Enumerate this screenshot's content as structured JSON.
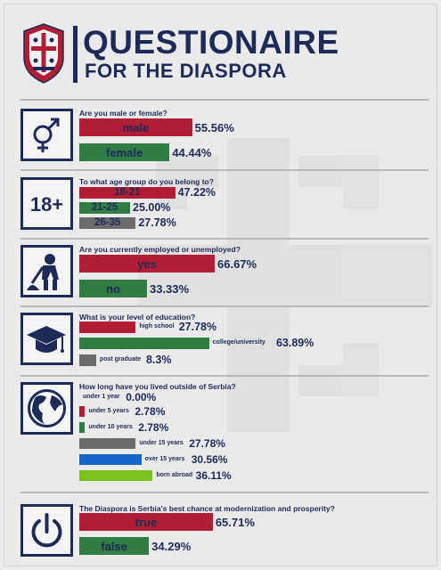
{
  "header": {
    "title_line1": "QUESTIONAIRE",
    "title_line2": "FOR THE DIASPORA"
  },
  "colors": {
    "navy": "#1e2b57",
    "red": "#b01e35",
    "green": "#2f7d45",
    "grey": "#6b6b6b",
    "blue": "#1565c8",
    "lime": "#7cc21e"
  },
  "chart_data": [
    {
      "type": "bar",
      "icon": "gender-icon",
      "question": "Are you male or female?",
      "categories": [
        "male",
        "female"
      ],
      "values": [
        55.56,
        44.44
      ],
      "value_labels": [
        "55.56%",
        "44.44%"
      ],
      "colors": [
        "red",
        "green"
      ]
    },
    {
      "type": "bar",
      "icon": "age-18plus-icon",
      "question": "To what age group do you belong to?",
      "categories": [
        "18-21",
        "21-25",
        "26-35"
      ],
      "values": [
        47.22,
        25.0,
        27.78
      ],
      "value_labels": [
        "47.22%",
        "25.00%",
        "27.78%"
      ],
      "colors": [
        "red",
        "green",
        "grey"
      ]
    },
    {
      "type": "bar",
      "icon": "worker-icon",
      "question": "Are you currently employed or unemployed?",
      "categories": [
        "yes",
        "no"
      ],
      "values": [
        66.67,
        33.33
      ],
      "value_labels": [
        "66.67%",
        "33.33%"
      ],
      "colors": [
        "red",
        "green"
      ]
    },
    {
      "type": "bar",
      "icon": "graduation-cap-icon",
      "question": "What is your level of education?",
      "categories": [
        "high school",
        "college/university",
        "post graduate"
      ],
      "values": [
        27.78,
        63.89,
        8.3
      ],
      "value_labels": [
        "27.78%",
        "63.89%",
        "8.3%"
      ],
      "colors": [
        "red",
        "green",
        "grey"
      ]
    },
    {
      "type": "bar",
      "icon": "globe-icon",
      "question": "How long have you lived outside of Serbia?",
      "categories": [
        "under 1 year",
        "under 5 years",
        "under 10 years",
        "under 15 years",
        "over 15 years",
        "born abroad"
      ],
      "values": [
        0.0,
        2.78,
        2.78,
        27.78,
        30.56,
        36.11
      ],
      "value_labels": [
        "0.00%",
        "2.78%",
        "2.78%",
        "27.78%",
        "30.56%",
        "36.11%"
      ],
      "colors": [
        "red",
        "red",
        "green",
        "grey",
        "blue",
        "lime"
      ]
    },
    {
      "type": "bar",
      "icon": "power-icon",
      "question": "The Diaspora is Serbia's best chance at modernization and prosperity?",
      "categories": [
        "true",
        "false"
      ],
      "values": [
        65.71,
        34.29
      ],
      "value_labels": [
        "65.71%",
        "34.29%"
      ],
      "colors": [
        "red",
        "green"
      ]
    }
  ]
}
